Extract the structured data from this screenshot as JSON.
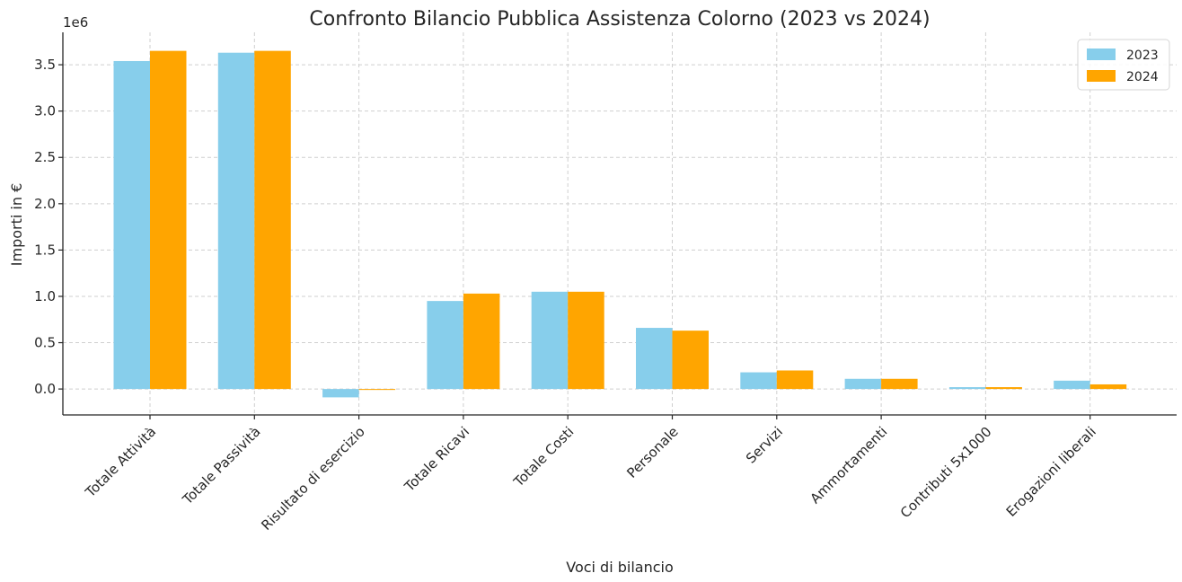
{
  "chart_data": {
    "type": "bar",
    "title": "Confronto Bilancio Pubblica Assistenza Colorno (2023 vs 2024)",
    "xlabel": "Voci di bilancio",
    "ylabel": "Importi in €",
    "y_offset_text": "1e6",
    "ylim": [
      -0.28,
      3.85
    ],
    "yticks": [
      0.0,
      0.5,
      1.0,
      1.5,
      2.0,
      2.5,
      3.0,
      3.5
    ],
    "ytick_labels": [
      "0.0",
      "0.5",
      "1.0",
      "1.5",
      "2.0",
      "2.5",
      "3.0",
      "3.5"
    ],
    "categories": [
      "Totale Attività",
      "Totale Passività",
      "Risultato di esercizio",
      "Totale Ricavi",
      "Totale Costi",
      "Personale",
      "Servizi",
      "Ammortamenti",
      "Contributi 5x1000",
      "Erogazioni liberali"
    ],
    "series": [
      {
        "name": "2023",
        "color": "#87CEEB",
        "values": [
          3.54,
          3.63,
          -0.09,
          0.95,
          1.05,
          0.66,
          0.18,
          0.11,
          0.02,
          0.09
        ]
      },
      {
        "name": "2024",
        "color": "#FFA500",
        "values": [
          3.65,
          3.65,
          -0.01,
          1.03,
          1.05,
          0.63,
          0.2,
          0.11,
          0.02,
          0.05
        ]
      }
    ],
    "grid": true,
    "legend_position": "top-right"
  }
}
